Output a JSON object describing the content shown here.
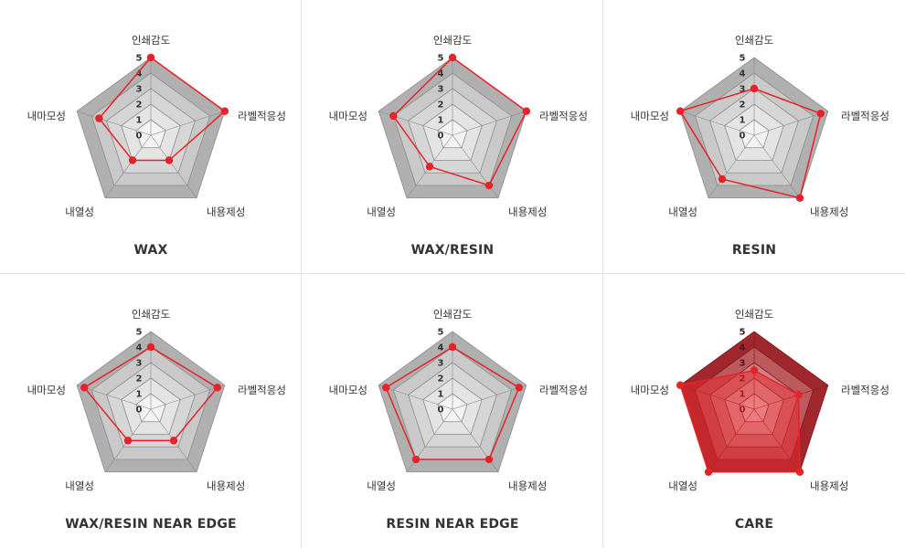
{
  "colors": {
    "accent": "#e52329",
    "outer_fill": "#b0b0b0",
    "ring_fills": [
      "#f3f3f3",
      "#e4e4e4",
      "#d6d6d6",
      "#c9c9c9",
      "#bdbdbd"
    ],
    "care_outer_fill": "#a0282c",
    "care_ring_fills": [
      "#f3e3e3",
      "#e3b4b5",
      "#cf8285",
      "#bc5a5e",
      "#ab3a3f"
    ]
  },
  "axes": [
    "인쇄감도",
    "라벨적응성",
    "내용제성",
    "내열성",
    "내마모성"
  ],
  "scale_labels": [
    "0",
    "1",
    "2",
    "3",
    "4",
    "5"
  ],
  "chart_data": [
    {
      "type": "radar",
      "title": "WAX",
      "axes": [
        "인쇄감도",
        "라벨적응성",
        "내용제성",
        "내열성",
        "내마모성"
      ],
      "range": [
        0,
        5
      ],
      "values": [
        5,
        5,
        2,
        2,
        3.5
      ]
    },
    {
      "type": "radar",
      "title": "WAX/RESIN",
      "axes": [
        "인쇄감도",
        "라벨적응성",
        "내용제성",
        "내열성",
        "내마모성"
      ],
      "range": [
        0,
        5
      ],
      "values": [
        5,
        5,
        4,
        2.5,
        4
      ]
    },
    {
      "type": "radar",
      "title": "RESIN",
      "axes": [
        "인쇄감도",
        "라벨적응성",
        "내용제성",
        "내열성",
        "내마모성"
      ],
      "range": [
        0,
        5
      ],
      "values": [
        3,
        4.5,
        5,
        3.5,
        5
      ]
    },
    {
      "type": "radar",
      "title": "WAX/RESIN NEAR EDGE",
      "axes": [
        "인쇄감도",
        "라벨적응성",
        "내용제성",
        "내열성",
        "내마모성"
      ],
      "range": [
        0,
        5
      ],
      "values": [
        4,
        4.5,
        2.5,
        2.5,
        4.5
      ]
    },
    {
      "type": "radar",
      "title": "RESIN NEAR EDGE",
      "axes": [
        "인쇄감도",
        "라벨적응성",
        "내용제성",
        "내열성",
        "내마모성"
      ],
      "range": [
        0,
        5
      ],
      "values": [
        4,
        4.5,
        4,
        4,
        4.5
      ]
    },
    {
      "type": "radar",
      "title": "CARE",
      "axes": [
        "인쇄감도",
        "라벨적응성",
        "내용제성",
        "내열성",
        "내마모성"
      ],
      "range": [
        0,
        5
      ],
      "values": [
        2.5,
        3,
        5,
        5,
        5
      ],
      "filled": true
    }
  ]
}
